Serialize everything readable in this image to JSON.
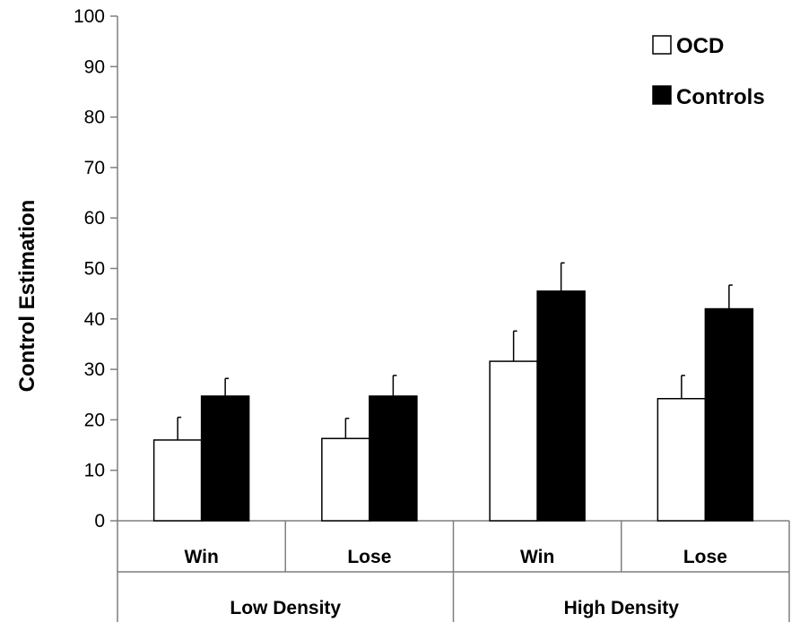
{
  "chart_data": {
    "type": "bar",
    "title": "",
    "xlabel": "",
    "ylabel": "Control Estimation",
    "ylim": [
      0,
      100
    ],
    "yticks": [
      0,
      10,
      20,
      30,
      40,
      50,
      60,
      70,
      80,
      90,
      100
    ],
    "grid": false,
    "legend_position": "top-right",
    "categories": [
      "Win",
      "Lose",
      "Win",
      "Lose"
    ],
    "groups": [
      {
        "label": "Low Density",
        "categories": [
          "Win",
          "Lose"
        ]
      },
      {
        "label": "High Density",
        "categories": [
          "Win",
          "Lose"
        ]
      }
    ],
    "series": [
      {
        "name": "OCD",
        "color": "#ffffff",
        "values": [
          16,
          16.3,
          31.6,
          24.2
        ],
        "errors": [
          4.5,
          4,
          6,
          4.6
        ]
      },
      {
        "name": "Controls",
        "color": "#000000",
        "values": [
          24.7,
          24.7,
          45.5,
          42
        ],
        "errors": [
          3.5,
          4.1,
          5.6,
          4.7
        ]
      }
    ]
  }
}
